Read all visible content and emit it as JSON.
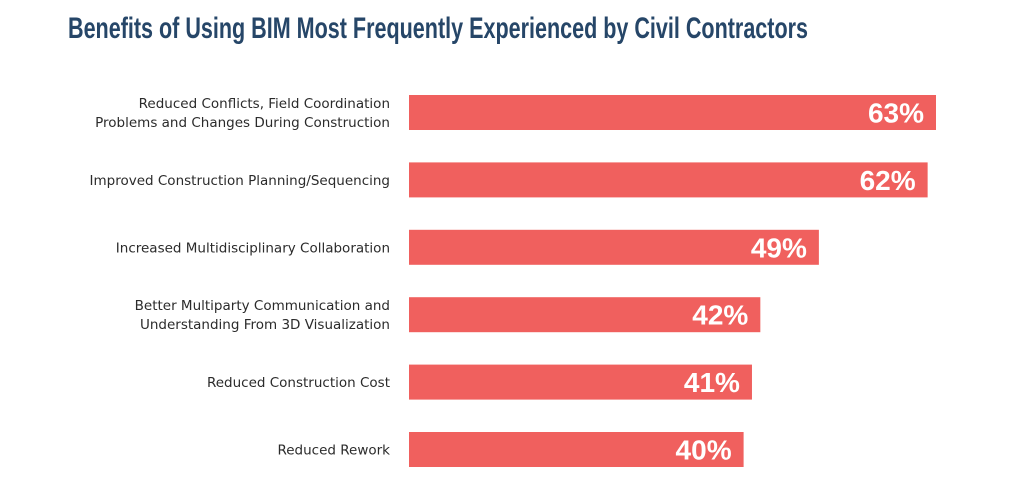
{
  "chart_data": {
    "type": "bar",
    "orientation": "horizontal",
    "title": "Benefits of Using BIM Most Frequently Experienced by Civil Contractors",
    "categories": [
      [
        "Reduced Conflicts, Field Coordination",
        "Problems and Changes During Construction"
      ],
      [
        "Improved Construction Planning/Sequencing"
      ],
      [
        "Increased Multidisciplinary Collaboration"
      ],
      [
        "Better Multiparty Communication and",
        "Understanding From 3D Visualization"
      ],
      [
        "Reduced Construction Cost"
      ],
      [
        "Reduced Rework"
      ]
    ],
    "values": [
      63,
      62,
      49,
      42,
      41,
      40
    ],
    "value_labels": [
      "63%",
      "62%",
      "49%",
      "42%",
      "41%",
      "40%"
    ],
    "unit": "%",
    "xlim": [
      0,
      63
    ],
    "grid": false,
    "bar_color": "#f0605e",
    "title_color": "#264668"
  }
}
